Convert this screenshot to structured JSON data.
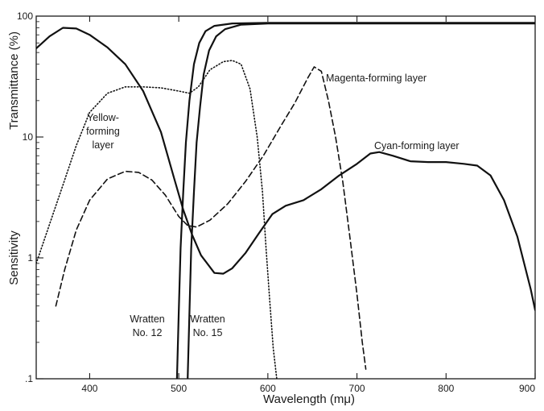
{
  "chart_data": {
    "type": "line",
    "title": "",
    "xlabel": "Wavelength (mμ)",
    "ylabel_left": "Sensitivity",
    "ylabel_top": "Transmittance (%)",
    "xlim": [
      340,
      900
    ],
    "ylim": [
      0.1,
      100
    ],
    "yscale": "log",
    "grid": false,
    "legend": "none",
    "x_ticks": [
      400,
      500,
      600,
      700,
      800,
      900
    ],
    "y_ticks": [
      {
        "value": 0.1,
        "label": ".1"
      },
      {
        "value": 1,
        "label": "1"
      },
      {
        "value": 10,
        "label": "10"
      },
      {
        "value": 100,
        "label": "100"
      }
    ],
    "series": [
      {
        "name": "Cyan-forming layer",
        "style": "solid",
        "points": [
          [
            340,
            54
          ],
          [
            355,
            68
          ],
          [
            370,
            80
          ],
          [
            385,
            79
          ],
          [
            400,
            70
          ],
          [
            420,
            55
          ],
          [
            440,
            40
          ],
          [
            460,
            24
          ],
          [
            480,
            11
          ],
          [
            495,
            4.5
          ],
          [
            505,
            2.5
          ],
          [
            515,
            1.55
          ],
          [
            525,
            1.05
          ],
          [
            540,
            0.75
          ],
          [
            550,
            0.74
          ],
          [
            560,
            0.82
          ],
          [
            575,
            1.1
          ],
          [
            590,
            1.6
          ],
          [
            605,
            2.3
          ],
          [
            620,
            2.7
          ],
          [
            640,
            3.0
          ],
          [
            660,
            3.7
          ],
          [
            680,
            4.8
          ],
          [
            700,
            6.0
          ],
          [
            715,
            7.3
          ],
          [
            725,
            7.5
          ],
          [
            740,
            7.0
          ],
          [
            760,
            6.3
          ],
          [
            780,
            6.2
          ],
          [
            800,
            6.2
          ],
          [
            820,
            6.0
          ],
          [
            835,
            5.8
          ],
          [
            850,
            4.8
          ],
          [
            865,
            3.0
          ],
          [
            880,
            1.5
          ],
          [
            895,
            0.55
          ],
          [
            900,
            0.37
          ]
        ]
      },
      {
        "name": "Magenta-forming layer",
        "style": "dashed",
        "points": [
          [
            362,
            0.4
          ],
          [
            372,
            0.8
          ],
          [
            385,
            1.7
          ],
          [
            400,
            3.0
          ],
          [
            420,
            4.5
          ],
          [
            440,
            5.2
          ],
          [
            455,
            5.1
          ],
          [
            470,
            4.4
          ],
          [
            485,
            3.3
          ],
          [
            500,
            2.2
          ],
          [
            510,
            1.85
          ],
          [
            520,
            1.8
          ],
          [
            535,
            2.05
          ],
          [
            555,
            2.8
          ],
          [
            575,
            4.3
          ],
          [
            595,
            7.0
          ],
          [
            615,
            12.5
          ],
          [
            630,
            19
          ],
          [
            645,
            31
          ],
          [
            652,
            38
          ],
          [
            660,
            35
          ],
          [
            668,
            20
          ],
          [
            676,
            10
          ],
          [
            684,
            4.3
          ],
          [
            692,
            1.5
          ],
          [
            700,
            0.5
          ],
          [
            706,
            0.2
          ],
          [
            710,
            0.12
          ]
        ]
      },
      {
        "name": "Yellow-forming layer",
        "style": "dotted",
        "points": [
          [
            340,
            0.9
          ],
          [
            355,
            1.9
          ],
          [
            370,
            4.0
          ],
          [
            385,
            8.5
          ],
          [
            400,
            16
          ],
          [
            420,
            23
          ],
          [
            440,
            26
          ],
          [
            460,
            26
          ],
          [
            480,
            25.5
          ],
          [
            500,
            24
          ],
          [
            512,
            23
          ],
          [
            522,
            26
          ],
          [
            535,
            36
          ],
          [
            550,
            42
          ],
          [
            560,
            43
          ],
          [
            570,
            40
          ],
          [
            580,
            25
          ],
          [
            588,
            10
          ],
          [
            594,
            3.5
          ],
          [
            598,
            1.2
          ],
          [
            602,
            0.45
          ],
          [
            606,
            0.18
          ],
          [
            610,
            0.1
          ]
        ]
      },
      {
        "name": "Wratten No. 12",
        "style": "solid",
        "points": [
          [
            498,
            0.1
          ],
          [
            500,
            0.35
          ],
          [
            502,
            1.2
          ],
          [
            505,
            3.5
          ],
          [
            508,
            9
          ],
          [
            512,
            20
          ],
          [
            517,
            40
          ],
          [
            523,
            60
          ],
          [
            530,
            75
          ],
          [
            540,
            83
          ],
          [
            560,
            87
          ],
          [
            600,
            88
          ],
          [
            700,
            88
          ],
          [
            800,
            88
          ],
          [
            900,
            88
          ]
        ]
      },
      {
        "name": "Wratten No. 15",
        "style": "solid",
        "points": [
          [
            510,
            0.1
          ],
          [
            512,
            0.35
          ],
          [
            514,
            1.2
          ],
          [
            517,
            3.5
          ],
          [
            520,
            9
          ],
          [
            524,
            18
          ],
          [
            528,
            33
          ],
          [
            534,
            52
          ],
          [
            542,
            68
          ],
          [
            552,
            78
          ],
          [
            570,
            85
          ],
          [
            600,
            87
          ],
          [
            700,
            87
          ],
          [
            800,
            87
          ],
          [
            900,
            87
          ]
        ]
      }
    ],
    "annotations": [
      {
        "id": "yellow",
        "lines": [
          "Yellow-",
          "forming",
          "layer"
        ]
      },
      {
        "id": "magenta",
        "lines": [
          "Magenta-forming layer"
        ]
      },
      {
        "id": "cyan",
        "lines": [
          "Cyan-forming layer"
        ]
      },
      {
        "id": "w12",
        "lines": [
          "Wratten",
          "No. 12"
        ]
      },
      {
        "id": "w15",
        "lines": [
          "Wratten",
          "No. 15"
        ]
      }
    ]
  }
}
